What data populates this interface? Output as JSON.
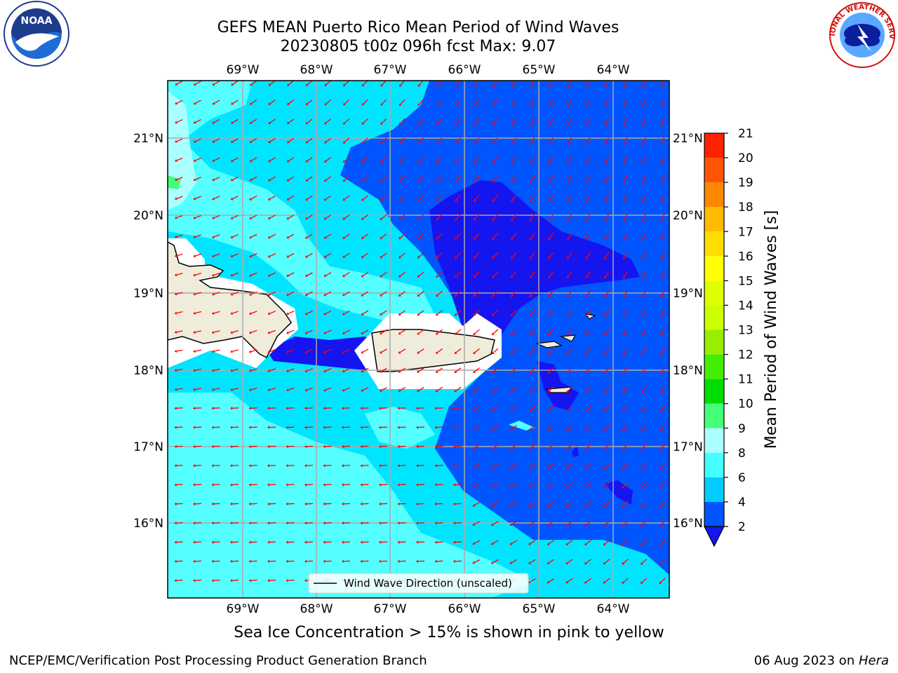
{
  "header": {
    "title_line1": "GEFS MEAN Puerto Rico Mean Period of Wind Waves",
    "title_line2": "20230805 t00z 096h fcst   Max: 9.07"
  },
  "logos": {
    "left": "noaa-logo",
    "right": "nws-logo",
    "left_text": "NOAA",
    "right_text": "NATIONAL WEATHER SERVICE"
  },
  "map": {
    "region": "Puerto Rico",
    "lon_labels": [
      "69°W",
      "68°W",
      "67°W",
      "66°W",
      "65°W",
      "64°W"
    ],
    "lat_labels": [
      "21°N",
      "20°N",
      "19°N",
      "18°N",
      "17°N",
      "16°N"
    ],
    "legend_label": "Wind Wave Direction (unscaled)",
    "vector_color": "#ff0000",
    "land_color": "#efecdc"
  },
  "colorbar": {
    "label": "Mean Period of Wind Waves [s]",
    "ticks": [
      "2",
      "4",
      "6",
      "8",
      "9",
      "10",
      "11",
      "12",
      "13",
      "14",
      "15",
      "16",
      "17",
      "18",
      "19",
      "20",
      "21"
    ],
    "colors": [
      "#0055ff",
      "#00ccff",
      "#44ffff",
      "#aaffff",
      "#44ff77",
      "#00dd00",
      "#44ee00",
      "#99ee00",
      "#ccff00",
      "#ddff00",
      "#ffff00",
      "#ffdd00",
      "#ffbb00",
      "#ff8800",
      "#ff5500",
      "#ff2200",
      "#ff0000"
    ],
    "under_color": "#1515f0"
  },
  "footer": {
    "sea_ice_note": "Sea Ice Concentration > 15% is shown in pink to yellow",
    "org": "NCEP/EMC/Verification Post Processing Product Generation Branch",
    "date_prefix": "06 Aug 2023 on ",
    "host": "Hera"
  }
}
